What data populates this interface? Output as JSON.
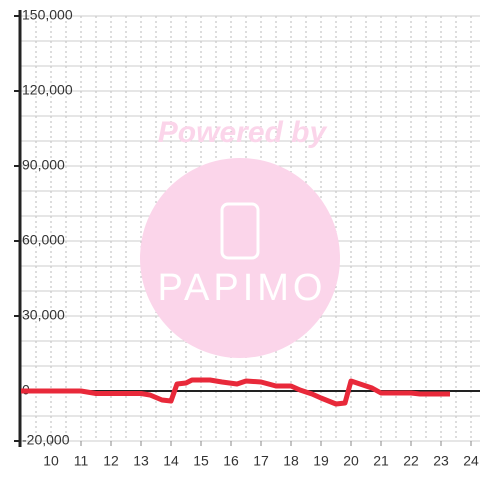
{
  "chart_data": {
    "type": "line",
    "x": [
      9,
      11,
      11.5,
      13,
      13.3,
      13.7,
      14,
      14.2,
      14.5,
      14.7,
      15.3,
      15.7,
      16.2,
      16.5,
      17,
      17.5,
      18,
      18.3,
      18.7,
      19,
      19.5,
      19.8,
      20,
      20.3,
      20.7,
      21,
      22,
      22.3,
      23.3
    ],
    "series": [
      {
        "color": "#e8293a",
        "values": [
          0,
          0,
          -1000,
          -1000,
          -1600,
          -3600,
          -4000,
          2800,
          3200,
          4400,
          4400,
          3600,
          2800,
          4000,
          3600,
          2000,
          2000,
          400,
          -1200,
          -2800,
          -5200,
          -4800,
          4000,
          2800,
          1200,
          -800,
          -800,
          -1200,
          -1200
        ]
      }
    ],
    "xlim": [
      9,
      24.3
    ],
    "xticks": [
      10,
      11,
      12,
      13,
      14,
      15,
      16,
      17,
      18,
      19,
      20,
      21,
      22,
      23,
      24
    ],
    "ylim": [
      -20000,
      150000
    ],
    "yticks": [
      {
        "value": -20000,
        "label": "-20,000"
      },
      0,
      {
        "value": 30000,
        "label": "30,000"
      },
      {
        "value": 60000,
        "label": "60,000"
      },
      {
        "value": 90000,
        "label": "90,000"
      },
      {
        "value": 120000,
        "label": "120,000"
      },
      {
        "value": 150000,
        "label": "150,000"
      }
    ],
    "y_grid_step": 10000,
    "x_grid_step": 0.5,
    "grid": true,
    "watermark": {
      "top": "Powered by",
      "brand": "PAPIMO"
    }
  }
}
